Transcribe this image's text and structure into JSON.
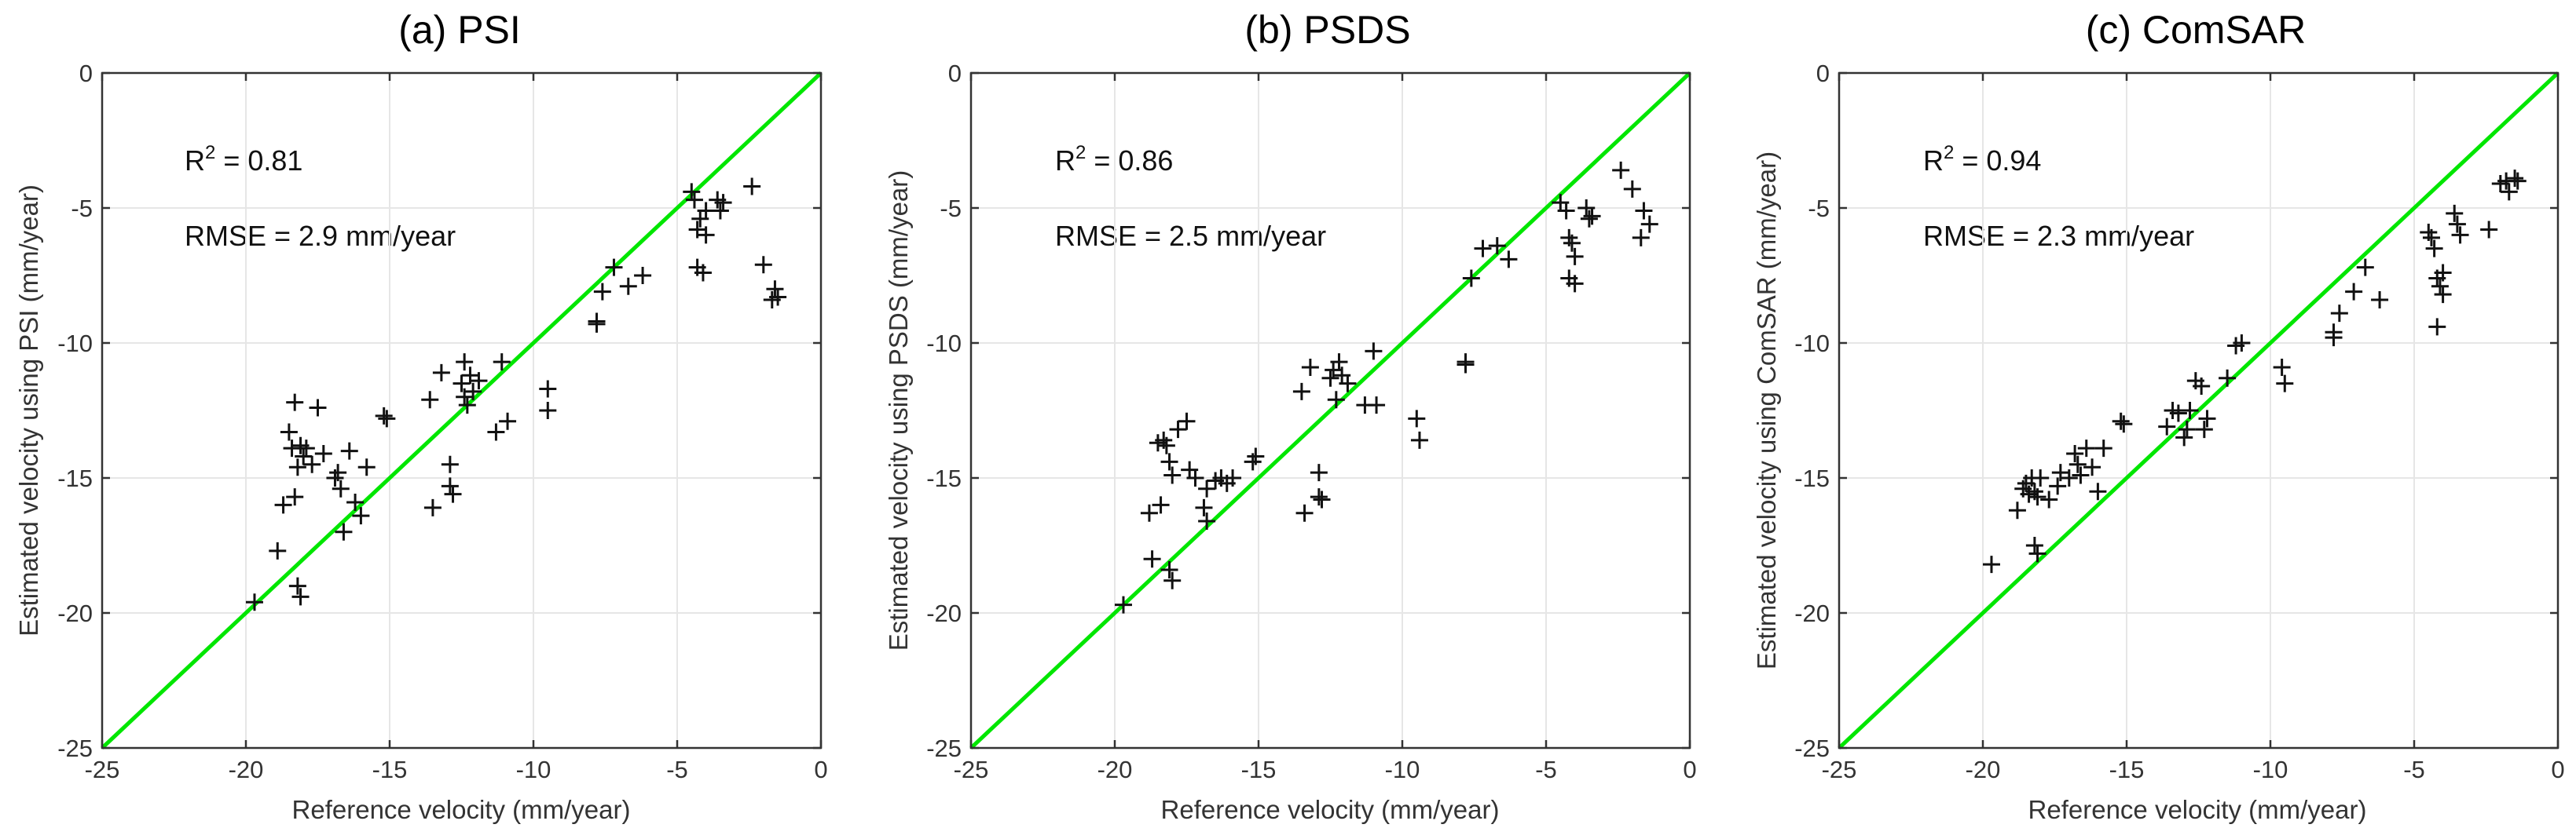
{
  "chart_data": [
    {
      "type": "scatter",
      "title": "(a) PSI",
      "xlabel": "Reference velocity (mm/year)",
      "ylabel": "Estimated velocity using PSI (mm/year)",
      "xlim": [
        -25,
        0
      ],
      "ylim": [
        -25,
        0
      ],
      "xticks": [
        -25,
        -20,
        -15,
        -10,
        -5,
        0
      ],
      "yticks": [
        -25,
        -20,
        -15,
        -10,
        -5,
        0
      ],
      "grid": true,
      "r2_label": "R",
      "r2_sup": "2",
      "r2_value": " = 0.81",
      "rmse_text": "RMSE = 2.9 mm/year",
      "identity_line_color": "#00e600",
      "marker": "plus",
      "points": [
        [
          -19.7,
          -19.6
        ],
        [
          -18.9,
          -17.7
        ],
        [
          -18.7,
          -16.0
        ],
        [
          -18.5,
          -13.3
        ],
        [
          -18.4,
          -13.9
        ],
        [
          -18.3,
          -12.2
        ],
        [
          -18.3,
          -15.7
        ],
        [
          -18.2,
          -14.6
        ],
        [
          -18.1,
          -13.8
        ],
        [
          -18.0,
          -14.2
        ],
        [
          -17.9,
          -13.9
        ],
        [
          -18.2,
          -19.0
        ],
        [
          -18.1,
          -19.4
        ],
        [
          -17.7,
          -14.5
        ],
        [
          -17.5,
          -12.4
        ],
        [
          -17.3,
          -14.1
        ],
        [
          -16.9,
          -15.0
        ],
        [
          -16.7,
          -15.4
        ],
        [
          -16.8,
          -14.8
        ],
        [
          -16.6,
          -17.0
        ],
        [
          -16.4,
          -14.0
        ],
        [
          -16.2,
          -15.9
        ],
        [
          -16.0,
          -16.4
        ],
        [
          -15.8,
          -14.6
        ],
        [
          -15.2,
          -12.7
        ],
        [
          -15.1,
          -12.8
        ],
        [
          -13.6,
          -12.1
        ],
        [
          -13.5,
          -16.1
        ],
        [
          -13.2,
          -11.1
        ],
        [
          -12.9,
          -14.5
        ],
        [
          -12.9,
          -15.3
        ],
        [
          -12.8,
          -15.6
        ],
        [
          -12.5,
          -11.5
        ],
        [
          -12.4,
          -12.0
        ],
        [
          -12.4,
          -10.7
        ],
        [
          -12.3,
          -12.3
        ],
        [
          -12.2,
          -11.2
        ],
        [
          -12.1,
          -11.8
        ],
        [
          -11.9,
          -11.4
        ],
        [
          -11.3,
          -13.3
        ],
        [
          -11.1,
          -10.7
        ],
        [
          -10.9,
          -12.9
        ],
        [
          -9.5,
          -11.7
        ],
        [
          -9.5,
          -12.5
        ],
        [
          -7.8,
          -9.2
        ],
        [
          -7.8,
          -9.3
        ],
        [
          -7.6,
          -8.1
        ],
        [
          -7.2,
          -7.2
        ],
        [
          -6.7,
          -7.9
        ],
        [
          -6.2,
          -7.5
        ],
        [
          -4.5,
          -4.4
        ],
        [
          -4.4,
          -4.7
        ],
        [
          -4.3,
          -5.8
        ],
        [
          -4.2,
          -5.4
        ],
        [
          -4.3,
          -7.2
        ],
        [
          -4.1,
          -7.4
        ],
        [
          -4.0,
          -5.1
        ],
        [
          -4.0,
          -6.0
        ],
        [
          -3.6,
          -4.7
        ],
        [
          -3.5,
          -5.1
        ],
        [
          -3.4,
          -4.8
        ],
        [
          -2.4,
          -4.2
        ],
        [
          -2.0,
          -7.1
        ],
        [
          -1.7,
          -8.4
        ],
        [
          -1.6,
          -8.0
        ],
        [
          -1.5,
          -8.3
        ]
      ]
    },
    {
      "type": "scatter",
      "title": "(b) PSDS",
      "xlabel": "Reference velocity (mm/year)",
      "ylabel": "Estimated velocity using PSDS (mm/year)",
      "xlim": [
        -25,
        0
      ],
      "ylim": [
        -25,
        0
      ],
      "xticks": [
        -25,
        -20,
        -15,
        -10,
        -5,
        0
      ],
      "yticks": [
        -25,
        -20,
        -15,
        -10,
        -5,
        0
      ],
      "grid": true,
      "r2_label": "R",
      "r2_sup": "2",
      "r2_value": " = 0.86",
      "rmse_text": "RMSE = 2.5 mm/year",
      "identity_line_color": "#00e600",
      "marker": "plus",
      "points": [
        [
          -19.7,
          -19.7
        ],
        [
          -18.8,
          -16.3
        ],
        [
          -18.7,
          -18.0
        ],
        [
          -18.5,
          -13.7
        ],
        [
          -18.3,
          -13.6
        ],
        [
          -18.4,
          -16.0
        ],
        [
          -18.2,
          -13.8
        ],
        [
          -18.1,
          -14.4
        ],
        [
          -18.0,
          -14.9
        ],
        [
          -18.1,
          -18.4
        ],
        [
          -18.0,
          -18.8
        ],
        [
          -17.8,
          -13.2
        ],
        [
          -17.5,
          -12.9
        ],
        [
          -17.4,
          -14.7
        ],
        [
          -17.2,
          -15.0
        ],
        [
          -16.9,
          -16.1
        ],
        [
          -16.8,
          -15.4
        ],
        [
          -16.8,
          -16.6
        ],
        [
          -16.5,
          -15.1
        ],
        [
          -16.3,
          -15.0
        ],
        [
          -16.1,
          -15.2
        ],
        [
          -15.9,
          -15.0
        ],
        [
          -15.2,
          -14.4
        ],
        [
          -15.1,
          -14.2
        ],
        [
          -13.5,
          -11.8
        ],
        [
          -13.4,
          -16.3
        ],
        [
          -13.2,
          -10.9
        ],
        [
          -12.9,
          -14.8
        ],
        [
          -12.9,
          -15.7
        ],
        [
          -12.8,
          -15.8
        ],
        [
          -12.5,
          -11.3
        ],
        [
          -12.4,
          -11.0
        ],
        [
          -12.3,
          -12.1
        ],
        [
          -12.2,
          -10.7
        ],
        [
          -12.1,
          -11.2
        ],
        [
          -11.9,
          -11.5
        ],
        [
          -11.3,
          -12.3
        ],
        [
          -11.0,
          -10.3
        ],
        [
          -10.9,
          -12.3
        ],
        [
          -9.5,
          -12.8
        ],
        [
          -9.4,
          -13.6
        ],
        [
          -7.8,
          -10.7
        ],
        [
          -7.8,
          -10.8
        ],
        [
          -7.6,
          -7.6
        ],
        [
          -7.2,
          -6.5
        ],
        [
          -6.7,
          -6.4
        ],
        [
          -6.3,
          -6.9
        ],
        [
          -4.5,
          -4.8
        ],
        [
          -4.3,
          -5.1
        ],
        [
          -4.2,
          -6.1
        ],
        [
          -4.1,
          -6.3
        ],
        [
          -4.2,
          -7.6
        ],
        [
          -4.0,
          -7.8
        ],
        [
          -4.0,
          -6.8
        ],
        [
          -3.6,
          -5.0
        ],
        [
          -3.5,
          -5.4
        ],
        [
          -3.4,
          -5.3
        ],
        [
          -2.4,
          -3.6
        ],
        [
          -2.0,
          -4.3
        ],
        [
          -1.7,
          -6.1
        ],
        [
          -1.6,
          -5.1
        ],
        [
          -1.4,
          -5.6
        ]
      ]
    },
    {
      "type": "scatter",
      "title": "(c) ComSAR",
      "xlabel": "Reference velocity (mm/year)",
      "ylabel": "Estimated velocity using ComSAR (mm/year)",
      "xlim": [
        -25,
        0
      ],
      "ylim": [
        -25,
        0
      ],
      "xticks": [
        -25,
        -20,
        -15,
        -10,
        -5,
        0
      ],
      "yticks": [
        -25,
        -20,
        -15,
        -10,
        -5,
        0
      ],
      "grid": true,
      "r2_label": "R",
      "r2_sup": "2",
      "r2_value": " = 0.94",
      "rmse_text": "RMSE = 2.3 mm/year",
      "identity_line_color": "#00e600",
      "marker": "plus",
      "points": [
        [
          -19.7,
          -18.2
        ],
        [
          -18.8,
          -16.2
        ],
        [
          -18.6,
          -15.4
        ],
        [
          -18.5,
          -15.2
        ],
        [
          -18.4,
          -15.6
        ],
        [
          -18.3,
          -15.0
        ],
        [
          -18.2,
          -15.5
        ],
        [
          -18.1,
          -15.7
        ],
        [
          -18.0,
          -15.0
        ],
        [
          -18.2,
          -17.5
        ],
        [
          -18.1,
          -17.8
        ],
        [
          -17.7,
          -15.8
        ],
        [
          -17.4,
          -15.3
        ],
        [
          -17.3,
          -14.8
        ],
        [
          -17.0,
          -15.0
        ],
        [
          -16.8,
          -14.1
        ],
        [
          -16.7,
          -14.5
        ],
        [
          -16.6,
          -14.9
        ],
        [
          -16.4,
          -13.9
        ],
        [
          -16.2,
          -14.6
        ],
        [
          -16.0,
          -15.5
        ],
        [
          -15.8,
          -13.9
        ],
        [
          -15.2,
          -12.9
        ],
        [
          -15.1,
          -13.0
        ],
        [
          -13.6,
          -13.1
        ],
        [
          -13.4,
          -12.5
        ],
        [
          -13.2,
          -12.6
        ],
        [
          -13.0,
          -13.5
        ],
        [
          -12.9,
          -13.2
        ],
        [
          -12.8,
          -12.5
        ],
        [
          -12.6,
          -11.4
        ],
        [
          -12.4,
          -11.6
        ],
        [
          -12.3,
          -13.2
        ],
        [
          -12.2,
          -12.8
        ],
        [
          -11.5,
          -11.3
        ],
        [
          -11.2,
          -10.1
        ],
        [
          -11.0,
          -10.0
        ],
        [
          -9.6,
          -10.9
        ],
        [
          -9.5,
          -11.5
        ],
        [
          -7.8,
          -9.6
        ],
        [
          -7.8,
          -9.8
        ],
        [
          -7.6,
          -8.9
        ],
        [
          -7.1,
          -8.1
        ],
        [
          -6.7,
          -7.2
        ],
        [
          -6.2,
          -8.4
        ],
        [
          -4.5,
          -5.9
        ],
        [
          -4.4,
          -6.1
        ],
        [
          -4.3,
          -6.5
        ],
        [
          -4.2,
          -7.6
        ],
        [
          -4.1,
          -7.9
        ],
        [
          -4.0,
          -8.2
        ],
        [
          -4.0,
          -7.4
        ],
        [
          -4.2,
          -9.4
        ],
        [
          -3.6,
          -5.2
        ],
        [
          -3.5,
          -5.6
        ],
        [
          -3.4,
          -6.0
        ],
        [
          -2.4,
          -5.8
        ],
        [
          -2.0,
          -4.1
        ],
        [
          -1.8,
          -4.0
        ],
        [
          -1.7,
          -4.4
        ],
        [
          -1.5,
          -3.9
        ],
        [
          -1.4,
          -4.0
        ]
      ]
    }
  ]
}
